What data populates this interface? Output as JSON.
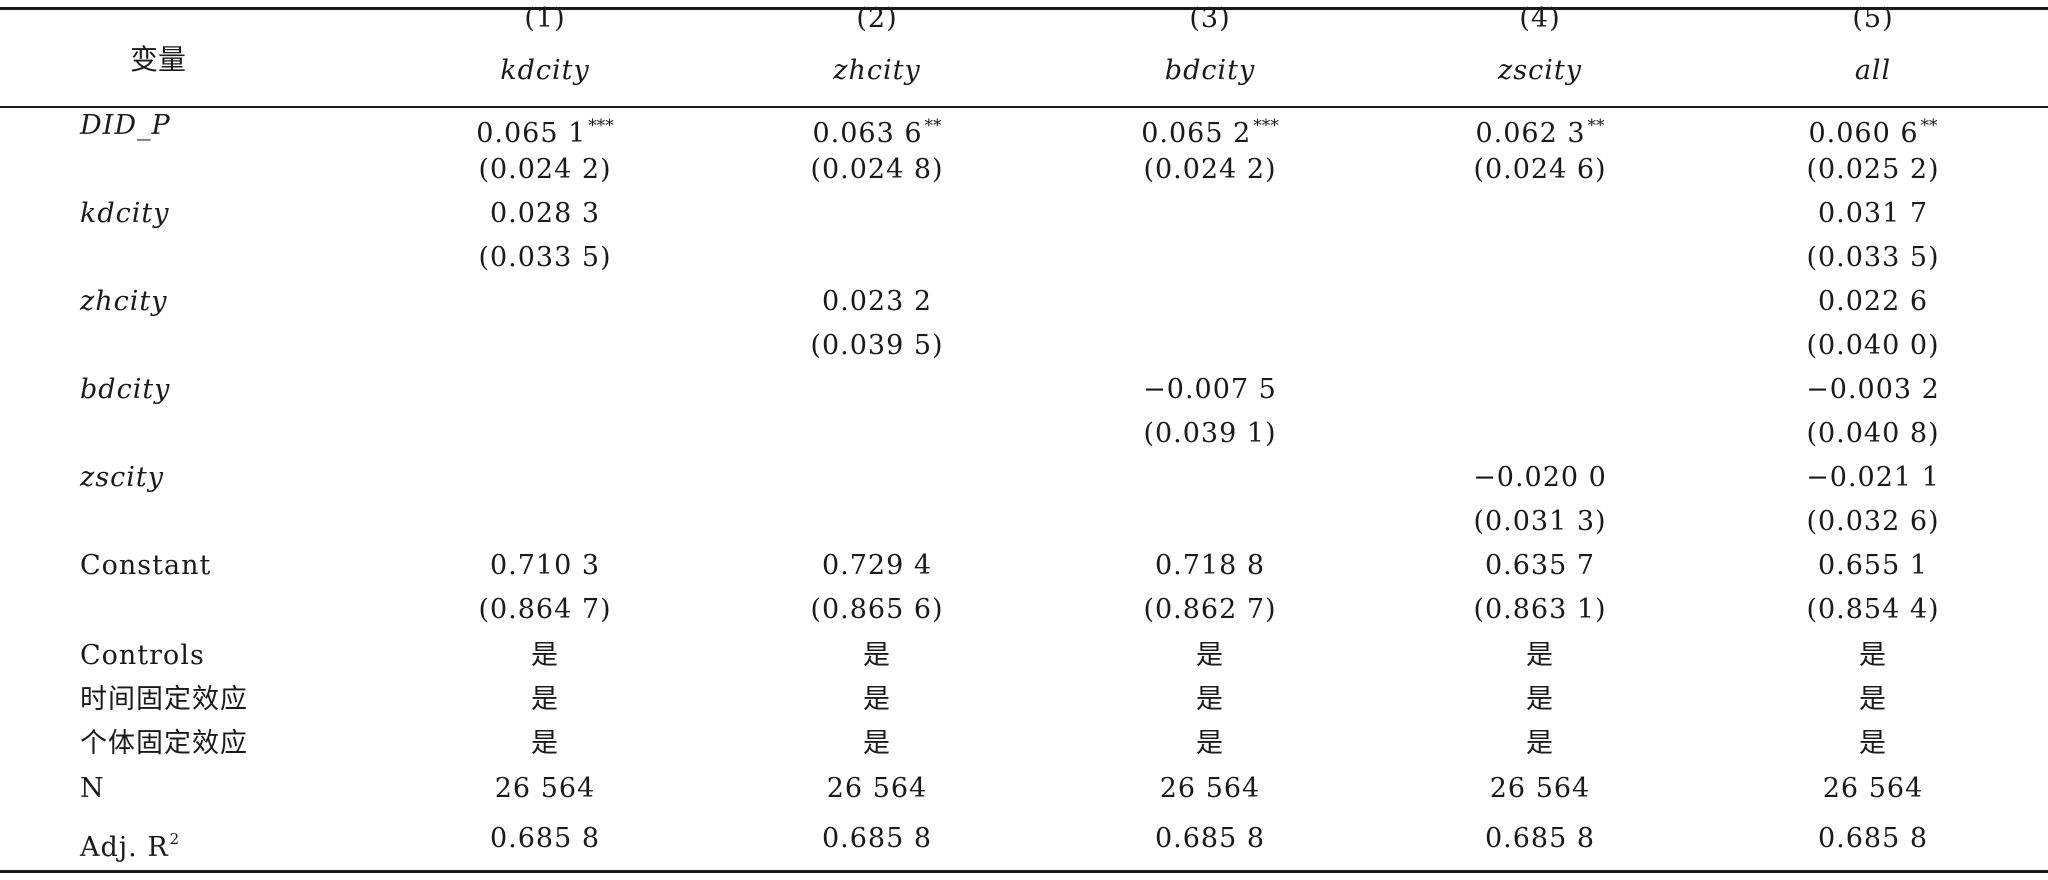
{
  "header": {
    "var_label": "变量",
    "columns": [
      {
        "num": "(1)",
        "dep": "kdcity"
      },
      {
        "num": "(2)",
        "dep": "zhcity"
      },
      {
        "num": "(3)",
        "dep": "bdcity"
      },
      {
        "num": "(4)",
        "dep": "zscity"
      },
      {
        "num": "(5)",
        "dep": "all"
      }
    ]
  },
  "rows": [
    {
      "label": "DID_P",
      "italic": true,
      "kind": "coef",
      "values": [
        "0.065 1",
        "0.063 6",
        "0.065 2",
        "0.062 3",
        "0.060 6"
      ],
      "stars": [
        "***",
        "**",
        "***",
        "**",
        "**"
      ]
    },
    {
      "label": "",
      "italic": false,
      "kind": "se",
      "values": [
        "(0.024 2)",
        "(0.024 8)",
        "(0.024 2)",
        "(0.024 6)",
        "(0.025 2)"
      ]
    },
    {
      "label": "kdcity",
      "italic": true,
      "kind": "coef",
      "values": [
        "0.028 3",
        "",
        "",
        "",
        "0.031 7"
      ],
      "stars": [
        "",
        "",
        "",
        "",
        ""
      ]
    },
    {
      "label": "",
      "italic": false,
      "kind": "se",
      "values": [
        "(0.033 5)",
        "",
        "",
        "",
        "(0.033 5)"
      ]
    },
    {
      "label": "zhcity",
      "italic": true,
      "kind": "coef",
      "values": [
        "",
        "0.023 2",
        "",
        "",
        "0.022 6"
      ],
      "stars": [
        "",
        "",
        "",
        "",
        ""
      ]
    },
    {
      "label": "",
      "italic": false,
      "kind": "se",
      "values": [
        "",
        "(0.039 5)",
        "",
        "",
        "(0.040 0)"
      ]
    },
    {
      "label": "bdcity",
      "italic": true,
      "kind": "coef",
      "values": [
        "",
        "",
        "−0.007 5",
        "",
        "−0.003 2"
      ],
      "stars": [
        "",
        "",
        "",
        "",
        ""
      ]
    },
    {
      "label": "",
      "italic": false,
      "kind": "se",
      "values": [
        "",
        "",
        "(0.039 1)",
        "",
        "(0.040 8)"
      ]
    },
    {
      "label": "zscity",
      "italic": true,
      "kind": "coef",
      "values": [
        "",
        "",
        "",
        "−0.020 0",
        "−0.021 1"
      ],
      "stars": [
        "",
        "",
        "",
        "",
        ""
      ]
    },
    {
      "label": "",
      "italic": false,
      "kind": "se",
      "values": [
        "",
        "",
        "",
        "(0.031 3)",
        "(0.032 6)"
      ]
    },
    {
      "label": "Constant",
      "italic": false,
      "kind": "coef",
      "values": [
        "0.710 3",
        "0.729 4",
        "0.718 8",
        "0.635 7",
        "0.655 1"
      ],
      "stars": [
        "",
        "",
        "",
        "",
        ""
      ]
    },
    {
      "label": "",
      "italic": false,
      "kind": "se",
      "values": [
        "(0.864 7)",
        "(0.865 6)",
        "(0.862 7)",
        "(0.863 1)",
        "(0.854 4)"
      ]
    },
    {
      "label": "Controls",
      "italic": false,
      "kind": "flag",
      "values": [
        "是",
        "是",
        "是",
        "是",
        "是"
      ]
    },
    {
      "label": "时间固定效应",
      "italic": false,
      "kind": "flag",
      "values": [
        "是",
        "是",
        "是",
        "是",
        "是"
      ]
    },
    {
      "label": "个体固定效应",
      "italic": false,
      "kind": "flag",
      "values": [
        "是",
        "是",
        "是",
        "是",
        "是"
      ]
    },
    {
      "label": "N",
      "italic": false,
      "kind": "stat",
      "values": [
        "26 564",
        "26 564",
        "26 564",
        "26 564",
        "26 564"
      ]
    },
    {
      "label": "Adj. R",
      "label_sup": "2",
      "italic": false,
      "kind": "stat",
      "values": [
        "0.685 8",
        "0.685 8",
        "0.685 8",
        "0.685 8",
        "0.685 8"
      ]
    }
  ]
}
